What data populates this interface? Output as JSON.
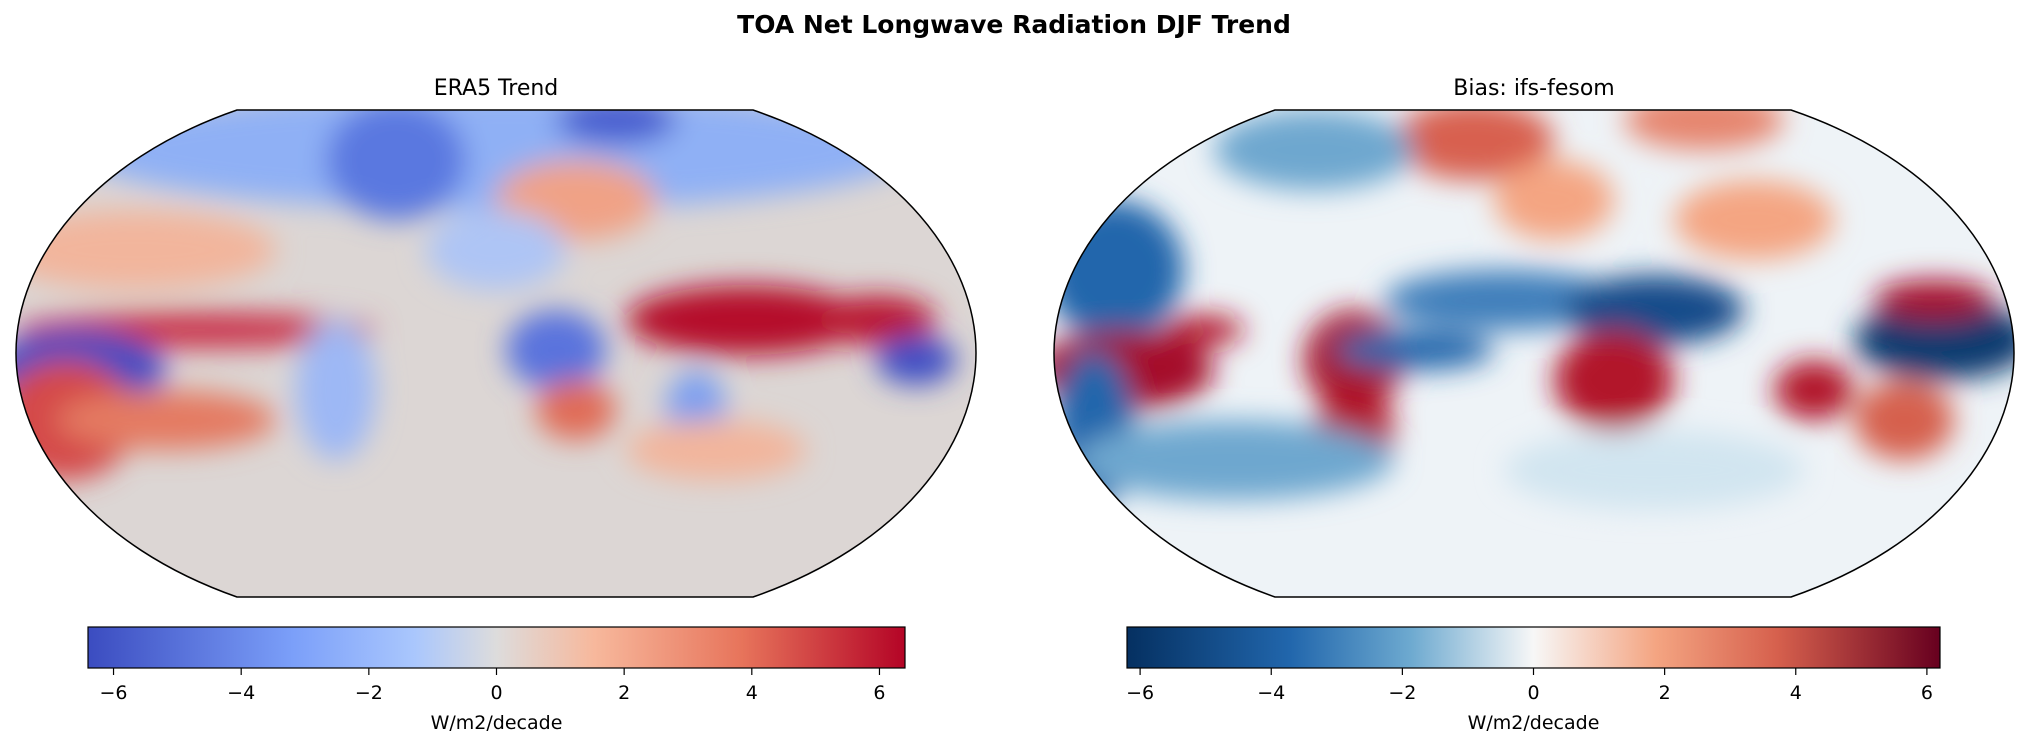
{
  "title": "TOA Net Longwave Radiation DJF Trend",
  "chart_data": [
    {
      "type": "heatmap",
      "title": "ERA5 Trend",
      "projection": "Robinson",
      "colormap": "coolwarm",
      "colorbar": {
        "label": "W/m2/decade",
        "ticks": [
          -6,
          -4,
          -2,
          0,
          2,
          4,
          6
        ],
        "tick_labels": [
          "−6",
          "−4",
          "−2",
          "0",
          "2",
          "4",
          "6"
        ],
        "range": [
          -6.4,
          6.4
        ]
      }
    },
    {
      "type": "heatmap",
      "title": "Bias: ifs-fesom",
      "projection": "Robinson",
      "colormap": "RdBu_r",
      "colorbar": {
        "label": "W/m2/decade",
        "ticks": [
          -6,
          -4,
          -2,
          0,
          2,
          4,
          6
        ],
        "tick_labels": [
          "−6",
          "−4",
          "−2",
          "0",
          "2",
          "4",
          "6"
        ],
        "range": [
          -6.2,
          6.2
        ]
      }
    }
  ]
}
